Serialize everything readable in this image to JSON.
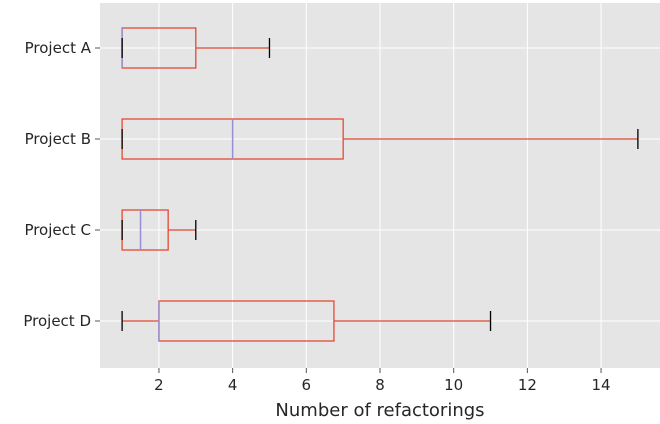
{
  "chart_data": {
    "type": "boxplot",
    "orientation": "horizontal",
    "title": "",
    "xlabel": "Number of refactorings",
    "ylabel": "",
    "xlim": [
      0.4,
      15.6
    ],
    "x_ticks": [
      2,
      4,
      6,
      8,
      10,
      12,
      14
    ],
    "x_tick_labels": [
      "2",
      "4",
      "6",
      "8",
      "10",
      "12",
      "14"
    ],
    "grid": true,
    "legend": "none",
    "categories": [
      "Project A",
      "Project B",
      "Project C",
      "Project D"
    ],
    "boxes": [
      {
        "label": "Project A",
        "whisker_low": 1,
        "q1": 1,
        "median": 1,
        "q3": 3,
        "whisker_high": 5
      },
      {
        "label": "Project B",
        "whisker_low": 1,
        "q1": 1,
        "median": 4,
        "q3": 7,
        "whisker_high": 15
      },
      {
        "label": "Project C",
        "whisker_low": 1,
        "q1": 1,
        "median": 1.5,
        "q3": 2.25,
        "whisker_high": 3
      },
      {
        "label": "Project D",
        "whisker_low": 1,
        "q1": 2,
        "median": 2,
        "q3": 6.75,
        "whisker_high": 11
      }
    ],
    "colors": {
      "background": "#e5e5e5",
      "grid": "#ffffff",
      "box": "#e24a33",
      "whisker": "#e24a33",
      "median": "#988ed5",
      "cap": "#000000",
      "tick_text": "#262626"
    }
  }
}
